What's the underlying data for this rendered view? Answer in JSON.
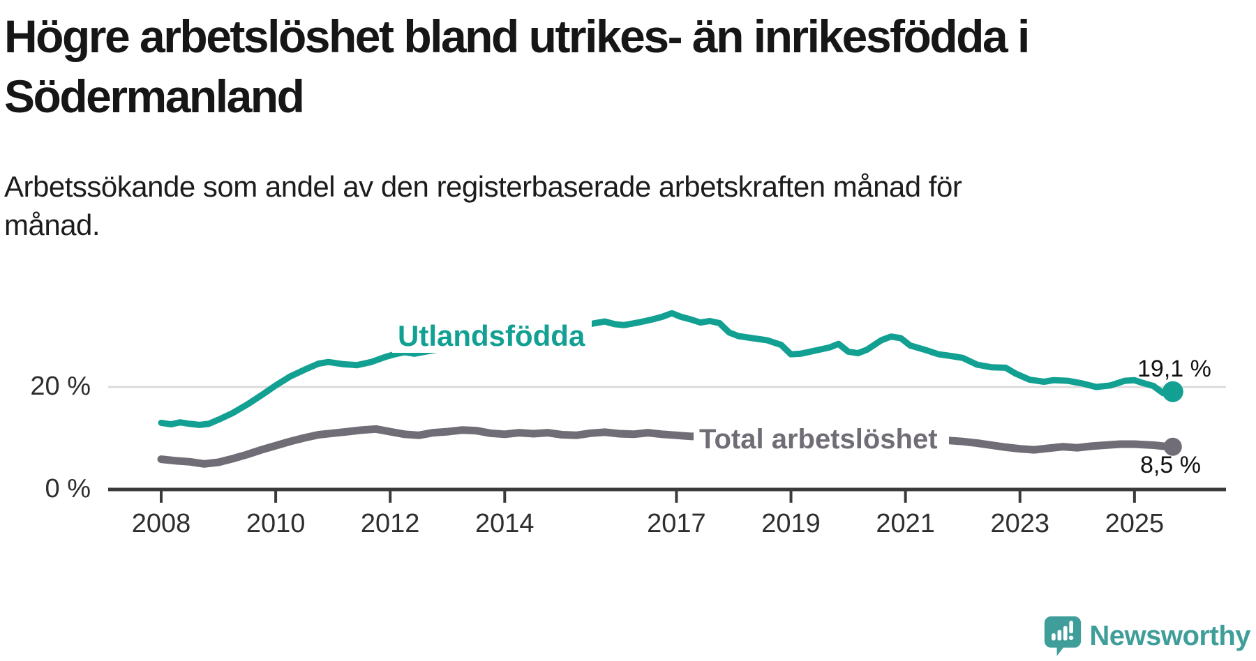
{
  "header": {
    "title_lines": [
      "Högre arbetslöshet bland utrikes- än inrikesfödda i",
      "Södermanland"
    ],
    "subtitle_lines": [
      "Arbetssökande som andel av den registerbaserade arbetskraften månad för",
      "månad."
    ]
  },
  "chart_data": {
    "type": "line",
    "title": "Högre arbetslöshet bland utrikes- än inrikesfödda i Södermanland",
    "subtitle": "Arbetssökande som andel av den registerbaserade arbetskraften månad för månad.",
    "unit": "%",
    "grid": "single horizontal gridline at 20 %",
    "legend_position": "inline labels on lines",
    "x_axis": {
      "ticks": [
        2008,
        2010,
        2012,
        2014,
        2017,
        2019,
        2021,
        2023,
        2025
      ],
      "range_years": [
        2007.1,
        2026.6
      ]
    },
    "y_axis": {
      "ticks": [
        {
          "value": 0,
          "label": "0 %"
        },
        {
          "value": 20,
          "label": "20 %"
        }
      ],
      "range": [
        0,
        36
      ]
    },
    "series": [
      {
        "name": "Utlandsfödda",
        "color": "#12a092",
        "end_label": "19,1 %",
        "end_value": 19.1,
        "points": [
          [
            2008.0,
            13.1
          ],
          [
            2008.17,
            12.8
          ],
          [
            2008.33,
            13.2
          ],
          [
            2008.5,
            12.9
          ],
          [
            2008.67,
            12.7
          ],
          [
            2008.83,
            12.9
          ],
          [
            2009.0,
            13.7
          ],
          [
            2009.25,
            15.0
          ],
          [
            2009.5,
            16.6
          ],
          [
            2009.75,
            18.4
          ],
          [
            2010.0,
            20.3
          ],
          [
            2010.25,
            22.0
          ],
          [
            2010.5,
            23.3
          ],
          [
            2010.75,
            24.5
          ],
          [
            2010.92,
            24.8
          ],
          [
            2011.17,
            24.4
          ],
          [
            2011.42,
            24.2
          ],
          [
            2011.67,
            24.8
          ],
          [
            2011.92,
            25.8
          ],
          [
            2012.08,
            26.3
          ],
          [
            2012.25,
            26.7
          ],
          [
            2012.42,
            26.4
          ],
          [
            2012.67,
            26.9
          ],
          [
            2012.92,
            27.4
          ],
          [
            2013.17,
            27.7
          ],
          [
            2013.42,
            28.0
          ],
          [
            2013.67,
            28.2
          ],
          [
            2013.92,
            28.5
          ],
          [
            2014.17,
            28.8
          ],
          [
            2014.42,
            29.2
          ],
          [
            2014.67,
            29.7
          ],
          [
            2014.92,
            30.3
          ],
          [
            2015.17,
            31.2
          ],
          [
            2015.42,
            31.9
          ],
          [
            2015.58,
            32.3
          ],
          [
            2015.75,
            32.6
          ],
          [
            2015.92,
            32.1
          ],
          [
            2016.08,
            31.9
          ],
          [
            2016.33,
            32.4
          ],
          [
            2016.58,
            33.0
          ],
          [
            2016.75,
            33.5
          ],
          [
            2016.92,
            34.2
          ],
          [
            2017.08,
            33.5
          ],
          [
            2017.25,
            33.0
          ],
          [
            2017.42,
            32.4
          ],
          [
            2017.58,
            32.7
          ],
          [
            2017.75,
            32.3
          ],
          [
            2017.92,
            30.5
          ],
          [
            2018.08,
            29.8
          ],
          [
            2018.33,
            29.4
          ],
          [
            2018.58,
            29.0
          ],
          [
            2018.83,
            28.1
          ],
          [
            2019.0,
            26.3
          ],
          [
            2019.17,
            26.4
          ],
          [
            2019.42,
            27.0
          ],
          [
            2019.67,
            27.6
          ],
          [
            2019.83,
            28.3
          ],
          [
            2020.0,
            26.8
          ],
          [
            2020.17,
            26.5
          ],
          [
            2020.33,
            27.2
          ],
          [
            2020.58,
            29.0
          ],
          [
            2020.75,
            29.7
          ],
          [
            2020.92,
            29.4
          ],
          [
            2021.08,
            28.0
          ],
          [
            2021.33,
            27.2
          ],
          [
            2021.58,
            26.3
          ],
          [
            2021.83,
            25.9
          ],
          [
            2022.0,
            25.6
          ],
          [
            2022.25,
            24.3
          ],
          [
            2022.5,
            23.8
          ],
          [
            2022.75,
            23.7
          ],
          [
            2022.92,
            22.6
          ],
          [
            2023.17,
            21.4
          ],
          [
            2023.42,
            21.0
          ],
          [
            2023.58,
            21.3
          ],
          [
            2023.83,
            21.2
          ],
          [
            2024.08,
            20.7
          ],
          [
            2024.33,
            20.0
          ],
          [
            2024.58,
            20.3
          ],
          [
            2024.83,
            21.2
          ],
          [
            2025.0,
            21.3
          ],
          [
            2025.17,
            20.7
          ],
          [
            2025.33,
            20.2
          ],
          [
            2025.5,
            18.8
          ],
          [
            2025.67,
            19.1
          ]
        ]
      },
      {
        "name": "Total arbetslöshet",
        "color": "#716d76",
        "end_label": "8,5 %",
        "end_value": 8.5,
        "points": [
          [
            2008.0,
            6.1
          ],
          [
            2008.25,
            5.8
          ],
          [
            2008.5,
            5.6
          ],
          [
            2008.75,
            5.2
          ],
          [
            2009.0,
            5.5
          ],
          [
            2009.25,
            6.2
          ],
          [
            2009.5,
            7.0
          ],
          [
            2009.75,
            7.9
          ],
          [
            2010.0,
            8.7
          ],
          [
            2010.25,
            9.5
          ],
          [
            2010.5,
            10.2
          ],
          [
            2010.75,
            10.8
          ],
          [
            2011.0,
            11.1
          ],
          [
            2011.25,
            11.4
          ],
          [
            2011.5,
            11.7
          ],
          [
            2011.75,
            11.9
          ],
          [
            2012.0,
            11.4
          ],
          [
            2012.25,
            10.9
          ],
          [
            2012.5,
            10.7
          ],
          [
            2012.75,
            11.2
          ],
          [
            2013.0,
            11.4
          ],
          [
            2013.25,
            11.7
          ],
          [
            2013.5,
            11.6
          ],
          [
            2013.75,
            11.1
          ],
          [
            2014.0,
            10.9
          ],
          [
            2014.25,
            11.2
          ],
          [
            2014.5,
            11.0
          ],
          [
            2014.75,
            11.2
          ],
          [
            2015.0,
            10.8
          ],
          [
            2015.25,
            10.7
          ],
          [
            2015.5,
            11.1
          ],
          [
            2015.75,
            11.3
          ],
          [
            2016.0,
            11.0
          ],
          [
            2016.25,
            10.9
          ],
          [
            2016.5,
            11.2
          ],
          [
            2016.75,
            10.9
          ],
          [
            2017.0,
            10.7
          ],
          [
            2017.25,
            10.5
          ],
          [
            2017.5,
            10.4
          ],
          [
            2017.75,
            10.6
          ],
          [
            2018.0,
            10.3
          ],
          [
            2018.25,
            10.1
          ],
          [
            2018.5,
            9.9
          ],
          [
            2018.75,
            9.8
          ],
          [
            2019.0,
            9.7
          ],
          [
            2019.25,
            9.8
          ],
          [
            2019.5,
            9.9
          ],
          [
            2019.75,
            10.1
          ],
          [
            2020.0,
            10.0
          ],
          [
            2020.25,
            10.7
          ],
          [
            2020.5,
            11.2
          ],
          [
            2020.75,
            11.0
          ],
          [
            2021.0,
            10.8
          ],
          [
            2021.25,
            10.4
          ],
          [
            2021.5,
            10.0
          ],
          [
            2021.75,
            9.7
          ],
          [
            2022.0,
            9.5
          ],
          [
            2022.25,
            9.2
          ],
          [
            2022.5,
            8.8
          ],
          [
            2022.75,
            8.4
          ],
          [
            2023.0,
            8.1
          ],
          [
            2023.25,
            7.9
          ],
          [
            2023.5,
            8.2
          ],
          [
            2023.75,
            8.5
          ],
          [
            2024.0,
            8.3
          ],
          [
            2024.25,
            8.6
          ],
          [
            2024.5,
            8.8
          ],
          [
            2024.75,
            9.0
          ],
          [
            2025.0,
            9.0
          ],
          [
            2025.17,
            8.9
          ],
          [
            2025.33,
            8.8
          ],
          [
            2025.5,
            8.6
          ],
          [
            2025.67,
            8.5
          ]
        ]
      }
    ]
  },
  "branding": {
    "logo_text": "Newsworthy",
    "logo_color": "#3f9e9a",
    "logo_icon": "speech-bubble-bar-chart-icon"
  },
  "colors": {
    "background": "#ffffff",
    "gridline": "#dcdcdc",
    "axis": "#3a3a3a",
    "text": "#1c1c1c"
  }
}
